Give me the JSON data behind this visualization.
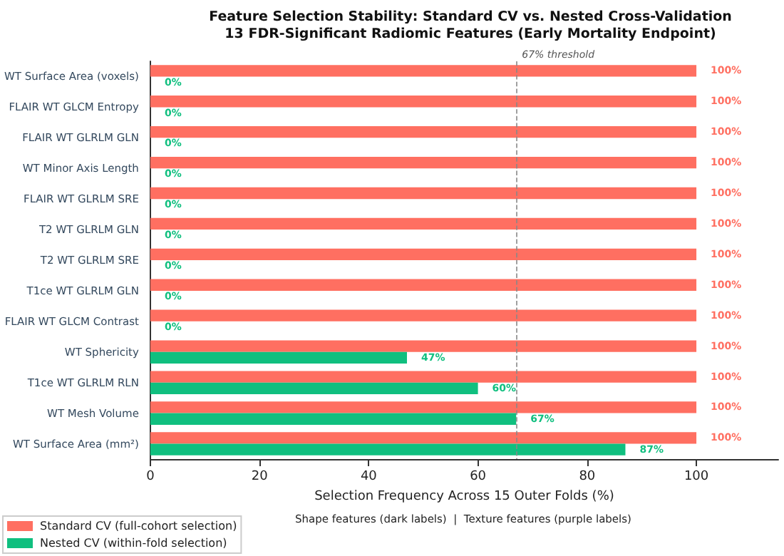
{
  "chart_data": {
    "type": "bar",
    "orientation": "horizontal",
    "title": "Feature Selection Stability: Standard CV vs. Nested Cross-Validation\n13 FDR-Significant Radiomic Features (Early Mortality Endpoint)",
    "xlabel": "Selection Frequency Across 15 Outer Folds (%)",
    "annotations": [
      "Shape features (dark labels)  |  Texture features (purple labels)"
    ],
    "categories": [
      "WT Surface Area (voxels)",
      "FLAIR WT GLCM Entropy",
      "FLAIR WT GLRLM GLN",
      "WT Minor Axis Length",
      "FLAIR WT GLRLM SRE",
      "T2 WT GLRLM GLN",
      "T2 WT GLRLM SRE",
      "T1ce WT GLRLM GLN",
      "FLAIR WT GLCM Contrast",
      "WT Sphericity",
      "T1ce WT GLRLM RLN",
      "WT Mesh Volume",
      "WT Surface Area (mm²)"
    ],
    "series": [
      {
        "name": "Standard CV (full-cohort selection)",
        "color": "#ff6f61",
        "values": [
          100,
          100,
          100,
          100,
          100,
          100,
          100,
          100,
          100,
          100,
          100,
          100,
          100
        ],
        "value_labels": [
          "100%",
          "100%",
          "100%",
          "100%",
          "100%",
          "100%",
          "100%",
          "100%",
          "100%",
          "100%",
          "100%",
          "100%",
          "100%"
        ]
      },
      {
        "name": "Nested CV (within-fold selection)",
        "color": "#10bf7f",
        "values": [
          0,
          0,
          0,
          0,
          0,
          0,
          0,
          0,
          0,
          47,
          60,
          67,
          87
        ],
        "value_labels": [
          "0%",
          "0%",
          "0%",
          "0%",
          "0%",
          "0%",
          "0%",
          "0%",
          "0%",
          "47%",
          "60%",
          "67%",
          "87%"
        ]
      }
    ],
    "xlim": [
      0,
      115
    ],
    "xticks": [
      0,
      20,
      40,
      60,
      80,
      100
    ],
    "ref_lines": [
      {
        "axis": "x",
        "value": 67,
        "label": "67% threshold",
        "color": "#888888",
        "line_style": "dashed"
      }
    ],
    "legend": "bottom left",
    "grid": false
  }
}
